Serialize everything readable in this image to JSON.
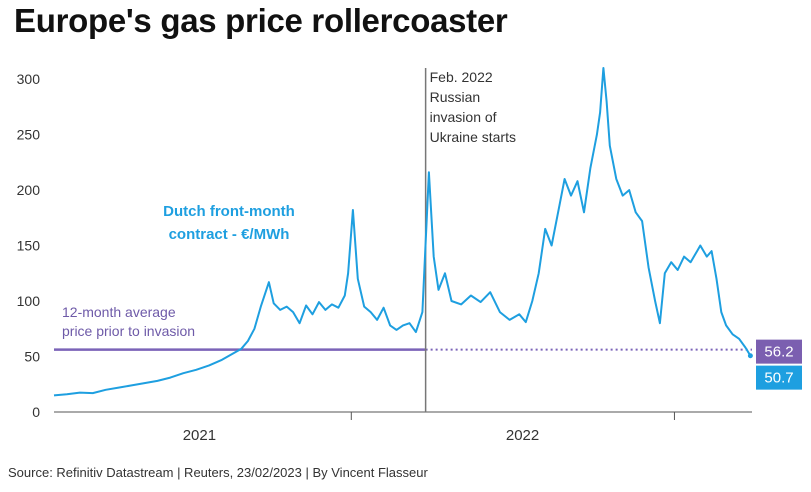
{
  "title": "Europe's gas price rollercoaster",
  "source": "Source: Refinitiv Datastream | Reuters, 23/02/2023 | By Vincent Flasseur",
  "colors": {
    "series": "#1e9fe0",
    "average": "#7b63b8",
    "average_badge": "#7b5fb0",
    "last_badge": "#1e9fe0",
    "event_line": "#777777",
    "axis": "#555555"
  },
  "chart_data": {
    "type": "line",
    "title": "Europe's gas price rollercoaster",
    "xlabel": "",
    "ylabel": "",
    "ylim": [
      0,
      310
    ],
    "yticks": [
      0,
      50,
      100,
      150,
      200,
      250,
      300
    ],
    "xlim": [
      2021.0,
      2023.16
    ],
    "year_labels": [
      {
        "label": "2021",
        "x": 2021.45
      },
      {
        "label": "2022",
        "x": 2022.45
      }
    ],
    "year_dividers": [
      2021.92,
      2022.92
    ],
    "series": [
      {
        "name": "Dutch front-month contract - €/MWh",
        "label_lines": [
          "Dutch front-month",
          "contract - €/MWh"
        ],
        "points": [
          [
            2021.0,
            15
          ],
          [
            2021.04,
            16
          ],
          [
            2021.08,
            17.5
          ],
          [
            2021.12,
            17
          ],
          [
            2021.16,
            20
          ],
          [
            2021.2,
            22
          ],
          [
            2021.24,
            24
          ],
          [
            2021.28,
            26
          ],
          [
            2021.32,
            28
          ],
          [
            2021.36,
            31
          ],
          [
            2021.4,
            35
          ],
          [
            2021.44,
            38
          ],
          [
            2021.48,
            42
          ],
          [
            2021.52,
            47
          ],
          [
            2021.55,
            52
          ],
          [
            2021.58,
            57
          ],
          [
            2021.6,
            64
          ],
          [
            2021.62,
            75
          ],
          [
            2021.64,
            95
          ],
          [
            2021.665,
            117
          ],
          [
            2021.68,
            98
          ],
          [
            2021.7,
            92
          ],
          [
            2021.72,
            95
          ],
          [
            2021.74,
            90
          ],
          [
            2021.76,
            80
          ],
          [
            2021.78,
            96
          ],
          [
            2021.8,
            88
          ],
          [
            2021.82,
            99
          ],
          [
            2021.84,
            92
          ],
          [
            2021.86,
            97
          ],
          [
            2021.88,
            94
          ],
          [
            2021.9,
            105
          ],
          [
            2021.91,
            125
          ],
          [
            2021.925,
            182
          ],
          [
            2021.94,
            120
          ],
          [
            2021.96,
            95
          ],
          [
            2021.98,
            90
          ],
          [
            2022.0,
            83
          ],
          [
            2022.02,
            94
          ],
          [
            2022.04,
            78
          ],
          [
            2022.06,
            74
          ],
          [
            2022.08,
            78
          ],
          [
            2022.1,
            80
          ],
          [
            2022.12,
            72
          ],
          [
            2022.14,
            90
          ],
          [
            2022.16,
            216
          ],
          [
            2022.175,
            140
          ],
          [
            2022.19,
            110
          ],
          [
            2022.21,
            125
          ],
          [
            2022.23,
            100
          ],
          [
            2022.26,
            97
          ],
          [
            2022.29,
            105
          ],
          [
            2022.32,
            99
          ],
          [
            2022.35,
            108
          ],
          [
            2022.38,
            90
          ],
          [
            2022.41,
            83
          ],
          [
            2022.44,
            88
          ],
          [
            2022.46,
            81
          ],
          [
            2022.48,
            100
          ],
          [
            2022.5,
            125
          ],
          [
            2022.52,
            165
          ],
          [
            2022.54,
            150
          ],
          [
            2022.56,
            180
          ],
          [
            2022.58,
            210
          ],
          [
            2022.6,
            195
          ],
          [
            2022.62,
            208
          ],
          [
            2022.64,
            180
          ],
          [
            2022.66,
            220
          ],
          [
            2022.68,
            250
          ],
          [
            2022.69,
            270
          ],
          [
            2022.7,
            310
          ],
          [
            2022.71,
            280
          ],
          [
            2022.72,
            240
          ],
          [
            2022.74,
            210
          ],
          [
            2022.76,
            195
          ],
          [
            2022.78,
            200
          ],
          [
            2022.8,
            180
          ],
          [
            2022.82,
            172
          ],
          [
            2022.84,
            130
          ],
          [
            2022.86,
            100
          ],
          [
            2022.875,
            80
          ],
          [
            2022.89,
            125
          ],
          [
            2022.91,
            135
          ],
          [
            2022.93,
            128
          ],
          [
            2022.95,
            140
          ],
          [
            2022.97,
            135
          ],
          [
            2022.99,
            145
          ],
          [
            2023.0,
            150
          ],
          [
            2023.02,
            140
          ],
          [
            2023.035,
            145
          ],
          [
            2023.05,
            120
          ],
          [
            2023.065,
            90
          ],
          [
            2023.08,
            78
          ],
          [
            2023.1,
            70
          ],
          [
            2023.12,
            66
          ],
          [
            2023.14,
            58
          ],
          [
            2023.155,
            50.7
          ]
        ],
        "last_value": "50.7"
      }
    ],
    "reference_line": {
      "name": "12-month average price prior to invasion",
      "label_lines": [
        "12-month average",
        "price prior to invasion"
      ],
      "value": 56.2,
      "value_label": "56.2"
    },
    "annotations": [
      {
        "x": 2022.15,
        "text_lines": [
          "Feb. 2022",
          "Russian",
          "invasion of",
          "Ukraine starts"
        ]
      }
    ]
  }
}
